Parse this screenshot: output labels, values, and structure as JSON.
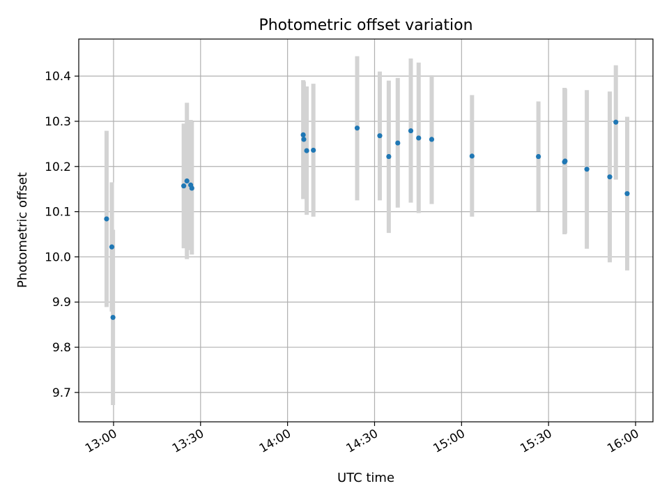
{
  "chart_data": {
    "type": "scatter",
    "title": "Photometric offset variation",
    "xlabel": "UTC time",
    "ylabel": "Photometric offset",
    "x_type": "time",
    "xlim": [
      "12:48",
      "16:06"
    ],
    "ylim": [
      9.635,
      10.482
    ],
    "x_ticks": [
      "13:00",
      "13:30",
      "14:00",
      "14:30",
      "15:00",
      "15:30",
      "16:00"
    ],
    "y_ticks": [
      "9.7",
      "9.8",
      "9.9",
      "10.0",
      "10.1",
      "10.2",
      "10.3",
      "10.4"
    ],
    "grid": true,
    "point_color": "#1f77b4",
    "errorbar_color": "#d3d3d3",
    "points": [
      {
        "x": "12:57:36",
        "y": 10.084,
        "ylow": 9.889,
        "yhigh": 10.279
      },
      {
        "x": "12:59:24",
        "y": 10.022,
        "ylow": 9.879,
        "yhigh": 10.165
      },
      {
        "x": "12:59:48",
        "y": 9.866,
        "ylow": 9.672,
        "yhigh": 10.06
      },
      {
        "x": "13:24:12",
        "y": 10.157,
        "ylow": 10.019,
        "yhigh": 10.295
      },
      {
        "x": "13:25:18",
        "y": 10.168,
        "ylow": 9.995,
        "yhigh": 10.341
      },
      {
        "x": "13:26:36",
        "y": 10.159,
        "ylow": 10.015,
        "yhigh": 10.303
      },
      {
        "x": "13:27:00",
        "y": 10.152,
        "ylow": 10.005,
        "yhigh": 10.299
      },
      {
        "x": "14:05:24",
        "y": 10.27,
        "ylow": 10.128,
        "yhigh": 10.391
      },
      {
        "x": "14:05:36",
        "y": 10.26,
        "ylow": 10.128,
        "yhigh": 10.388
      },
      {
        "x": "14:06:36",
        "y": 10.235,
        "ylow": 10.093,
        "yhigh": 10.377
      },
      {
        "x": "14:08:54",
        "y": 10.236,
        "ylow": 10.089,
        "yhigh": 10.383
      },
      {
        "x": "14:24:00",
        "y": 10.285,
        "ylow": 10.125,
        "yhigh": 10.444
      },
      {
        "x": "14:31:48",
        "y": 10.268,
        "ylow": 10.125,
        "yhigh": 10.41
      },
      {
        "x": "14:34:54",
        "y": 10.222,
        "ylow": 10.053,
        "yhigh": 10.39
      },
      {
        "x": "14:38:00",
        "y": 10.252,
        "ylow": 10.109,
        "yhigh": 10.396
      },
      {
        "x": "14:42:30",
        "y": 10.279,
        "ylow": 10.12,
        "yhigh": 10.439
      },
      {
        "x": "14:45:12",
        "y": 10.263,
        "ylow": 10.097,
        "yhigh": 10.43
      },
      {
        "x": "14:49:42",
        "y": 10.26,
        "ylow": 10.117,
        "yhigh": 10.402
      },
      {
        "x": "15:03:36",
        "y": 10.223,
        "ylow": 10.089,
        "yhigh": 10.358
      },
      {
        "x": "15:26:30",
        "y": 10.222,
        "ylow": 10.101,
        "yhigh": 10.344
      },
      {
        "x": "15:35:30",
        "y": 10.21,
        "ylow": 10.05,
        "yhigh": 10.374
      },
      {
        "x": "15:35:42",
        "y": 10.212,
        "ylow": 10.052,
        "yhigh": 10.372
      },
      {
        "x": "15:43:12",
        "y": 10.194,
        "ylow": 10.018,
        "yhigh": 10.369
      },
      {
        "x": "15:51:06",
        "y": 10.177,
        "ylow": 9.988,
        "yhigh": 10.366
      },
      {
        "x": "15:53:12",
        "y": 10.298,
        "ylow": 10.171,
        "yhigh": 10.424
      },
      {
        "x": "15:57:06",
        "y": 10.14,
        "ylow": 9.97,
        "yhigh": 10.31
      }
    ]
  }
}
